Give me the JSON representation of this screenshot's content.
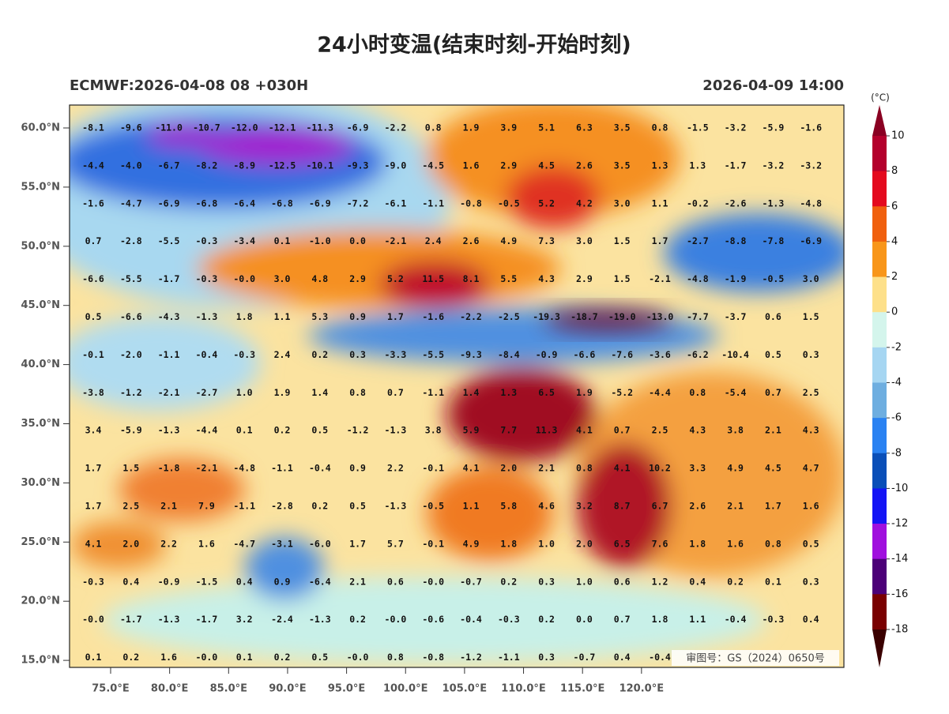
{
  "title": "24小时变温(结束时刻-开始时刻)",
  "subtitle_left": "ECMWF:2026-04-08 08 +030H",
  "subtitle_right": "2026-04-09 14:00",
  "lat_ticks": [
    {
      "value": 60,
      "label": "60.0°N"
    },
    {
      "value": 55,
      "label": "55.0°N"
    },
    {
      "value": 50,
      "label": "50.0°N"
    },
    {
      "value": 45,
      "label": "45.0°N"
    },
    {
      "value": 40,
      "label": "40.0°N"
    },
    {
      "value": 35,
      "label": "35.0°N"
    },
    {
      "value": 30,
      "label": "30.0°N"
    },
    {
      "value": 25,
      "label": "25.0°N"
    },
    {
      "value": 20,
      "label": "20.0°N"
    },
    {
      "value": 15,
      "label": "15.0°N"
    }
  ],
  "lon_ticks": [
    {
      "value": 75,
      "label": "75.0°E"
    },
    {
      "value": 80,
      "label": "80.0°E"
    },
    {
      "value": 85,
      "label": "85.0°E"
    },
    {
      "value": 90,
      "label": "90.0°E"
    },
    {
      "value": 95,
      "label": "95.0°E"
    },
    {
      "value": 100,
      "label": "100.0°E"
    },
    {
      "value": 105,
      "label": "105.0°E"
    },
    {
      "value": 110,
      "label": "110.0°E"
    },
    {
      "value": 115,
      "label": "115.0°E"
    },
    {
      "value": 120,
      "label": "120.0°E"
    }
  ],
  "grid": [
    [
      "-8.1",
      "-9.6",
      "-11.0",
      "-10.7",
      "-12.0",
      "-12.1",
      "-11.3",
      "-6.9",
      "-2.2",
      "0.8",
      "1.9",
      "3.9",
      "5.1",
      "6.3",
      "3.5",
      "0.8",
      "-1.5",
      "-3.2",
      "-5.9",
      "-1.6"
    ],
    [
      "-4.4",
      "-4.0",
      "-6.7",
      "-8.2",
      "-8.9",
      "-12.5",
      "-10.1",
      "-9.3",
      "-9.0",
      "-4.5",
      "1.6",
      "2.9",
      "4.5",
      "2.6",
      "3.5",
      "1.3",
      "1.3",
      "-1.7",
      "-3.2",
      "-3.2"
    ],
    [
      "-1.6",
      "-4.7",
      "-6.9",
      "-6.8",
      "-6.4",
      "-6.8",
      "-6.9",
      "-7.2",
      "-6.1",
      "-1.1",
      "-0.8",
      "-0.5",
      "5.2",
      "4.2",
      "3.0",
      "1.1",
      "-0.2",
      "-2.6",
      "-1.3",
      "-4.8"
    ],
    [
      "0.7",
      "-2.8",
      "-5.5",
      "-0.3",
      "-3.4",
      "0.1",
      "-1.0",
      "0.0",
      "-2.1",
      "2.4",
      "2.6",
      "4.9",
      "7.3",
      "3.0",
      "1.5",
      "1.7",
      "-2.7",
      "-8.8",
      "-7.8",
      "-6.9"
    ],
    [
      "-6.6",
      "-5.5",
      "-1.7",
      "-0.3",
      "-0.0",
      "3.0",
      "4.8",
      "2.9",
      "5.2",
      "11.5",
      "8.1",
      "5.5",
      "4.3",
      "2.9",
      "1.5",
      "-2.1",
      "-4.8",
      "-1.9",
      "-0.5",
      "3.0"
    ],
    [
      "0.5",
      "-6.6",
      "-4.3",
      "-1.3",
      "1.8",
      "1.1",
      "5.3",
      "0.9",
      "1.7",
      "-1.6",
      "-2.2",
      "-2.5",
      "-19.3",
      "-18.7",
      "-19.0",
      "-13.0",
      "-7.7",
      "-3.7",
      "0.6",
      "1.5"
    ],
    [
      "-0.1",
      "-2.0",
      "-1.1",
      "-0.4",
      "-0.3",
      "2.4",
      "0.2",
      "0.3",
      "-3.3",
      "-5.5",
      "-9.3",
      "-8.4",
      "-0.9",
      "-6.6",
      "-7.6",
      "-3.6",
      "-6.2",
      "-10.4",
      "0.5",
      "0.3"
    ],
    [
      "-3.8",
      "-1.2",
      "-2.1",
      "-2.7",
      "1.0",
      "1.9",
      "1.4",
      "0.8",
      "0.7",
      "-1.1",
      "1.4",
      "1.3",
      "6.5",
      "1.9",
      "-5.2",
      "-4.4",
      "0.8",
      "-5.4",
      "0.7",
      "2.5"
    ],
    [
      "3.4",
      "-5.9",
      "-1.3",
      "-4.4",
      "0.1",
      "0.2",
      "0.5",
      "-1.2",
      "-1.3",
      "3.8",
      "5.9",
      "7.7",
      "11.3",
      "4.1",
      "0.7",
      "2.5",
      "4.3",
      "3.8",
      "2.1",
      "4.3"
    ],
    [
      "1.7",
      "1.5",
      "-1.8",
      "-2.1",
      "-4.8",
      "-1.1",
      "-0.4",
      "0.9",
      "2.2",
      "-0.1",
      "4.1",
      "2.0",
      "2.1",
      "0.8",
      "4.1",
      "10.2",
      "3.3",
      "4.9",
      "4.5",
      "4.7"
    ],
    [
      "1.7",
      "2.5",
      "2.1",
      "7.9",
      "-1.1",
      "-2.8",
      "0.2",
      "0.5",
      "-1.3",
      "-0.5",
      "1.1",
      "5.8",
      "4.6",
      "3.2",
      "8.7",
      "6.7",
      "2.6",
      "2.1",
      "1.7",
      "1.6"
    ],
    [
      "4.1",
      "2.0",
      "2.2",
      "1.6",
      "-4.7",
      "-3.1",
      "-6.0",
      "1.7",
      "5.7",
      "-0.1",
      "4.9",
      "1.8",
      "1.0",
      "2.0",
      "6.5",
      "7.6",
      "1.8",
      "1.6",
      "0.8",
      "0.5"
    ],
    [
      "-0.3",
      "0.4",
      "-0.9",
      "-1.5",
      "0.4",
      "0.9",
      "-6.4",
      "2.1",
      "0.6",
      "-0.0",
      "-0.7",
      "0.2",
      "0.3",
      "1.0",
      "0.6",
      "1.2",
      "0.4",
      "0.2",
      "0.1",
      "0.3"
    ],
    [
      "-0.0",
      "-1.7",
      "-1.3",
      "-1.7",
      "3.2",
      "-2.4",
      "-1.3",
      "0.2",
      "-0.0",
      "-0.6",
      "-0.4",
      "-0.3",
      "0.2",
      "0.0",
      "0.7",
      "1.8",
      "1.1",
      "-0.4",
      "-0.3",
      "0.4"
    ],
    [
      "0.1",
      "0.2",
      "1.6",
      "-0.0",
      "0.1",
      "0.2",
      "0.5",
      "-0.0",
      "0.8",
      "-0.8",
      "-1.2",
      "-1.1",
      "0.3",
      "-0.7",
      "0.4",
      "-0.4",
      null,
      null,
      null,
      null
    ]
  ],
  "watermark": "审图号：GS（2024）0650号",
  "colorbar": {
    "unit": "(°C)",
    "ticks": [
      10,
      8,
      6,
      4,
      2,
      0,
      -2,
      -4,
      -6,
      -8,
      -10,
      -12,
      -14,
      -16,
      -18
    ],
    "over_color": "#8a0022",
    "under_color": "#3a0000",
    "colors": [
      "#b4002c",
      "#e40a1e",
      "#f0600e",
      "#f8961a",
      "#fde08a",
      "#d4f5ec",
      "#a6d6f2",
      "#6eaee0",
      "#2a82f2",
      "#0a4fb8",
      "#1414f5",
      "#a010de",
      "#4c0078",
      "#7a0000"
    ]
  }
}
